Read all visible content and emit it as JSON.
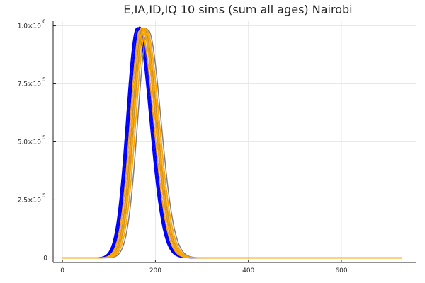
{
  "chart_data": {
    "type": "line",
    "title": "E,IA,ID,IQ 10 sims (sum all ages) Nairobi",
    "xlabel": "",
    "ylabel": "",
    "xlim": [
      -20,
      760
    ],
    "ylim": [
      -20000,
      1020000
    ],
    "grid": true,
    "legend": "none",
    "x_ticks": [
      {
        "value": 0,
        "label": "0"
      },
      {
        "value": 200,
        "label": "200"
      },
      {
        "value": 400,
        "label": "400"
      },
      {
        "value": 600,
        "label": "600"
      }
    ],
    "y_ticks": [
      {
        "value": 0,
        "base": "0",
        "exp": ""
      },
      {
        "value": 250000,
        "base": "2.5×10",
        "exp": "5"
      },
      {
        "value": 500000,
        "base": "5.0×10",
        "exp": "5"
      },
      {
        "value": 750000,
        "base": "7.5×10",
        "exp": "5"
      },
      {
        "value": 1000000,
        "base": "1.0×10",
        "exp": "6"
      }
    ],
    "x_max": 730,
    "series": [
      {
        "color": "#0000ff",
        "peak_x": 160,
        "peak_y": 990000
      },
      {
        "color": "#0000ff",
        "peak_x": 162,
        "peak_y": 992000
      },
      {
        "color": "#0000ff",
        "peak_x": 164,
        "peak_y": 988000
      },
      {
        "color": "#0000ff",
        "peak_x": 166,
        "peak_y": 995000
      },
      {
        "color": "#0000ff",
        "peak_x": 168,
        "peak_y": 985000
      },
      {
        "color": "#808080",
        "peak_x": 168,
        "peak_y": 980000
      },
      {
        "color": "#808080",
        "peak_x": 172,
        "peak_y": 985000
      },
      {
        "color": "#808080",
        "peak_x": 176,
        "peak_y": 990000
      },
      {
        "color": "#808080",
        "peak_x": 180,
        "peak_y": 988000
      },
      {
        "color": "#808080",
        "peak_x": 184,
        "peak_y": 982000
      },
      {
        "color": "#ffa500",
        "peak_x": 168,
        "peak_y": 985000
      },
      {
        "color": "#ffa500",
        "peak_x": 171,
        "peak_y": 992000
      },
      {
        "color": "#ffa500",
        "peak_x": 174,
        "peak_y": 988000
      },
      {
        "color": "#ffa500",
        "peak_x": 177,
        "peak_y": 990000
      },
      {
        "color": "#ffa500",
        "peak_x": 180,
        "peak_y": 984000
      }
    ]
  }
}
